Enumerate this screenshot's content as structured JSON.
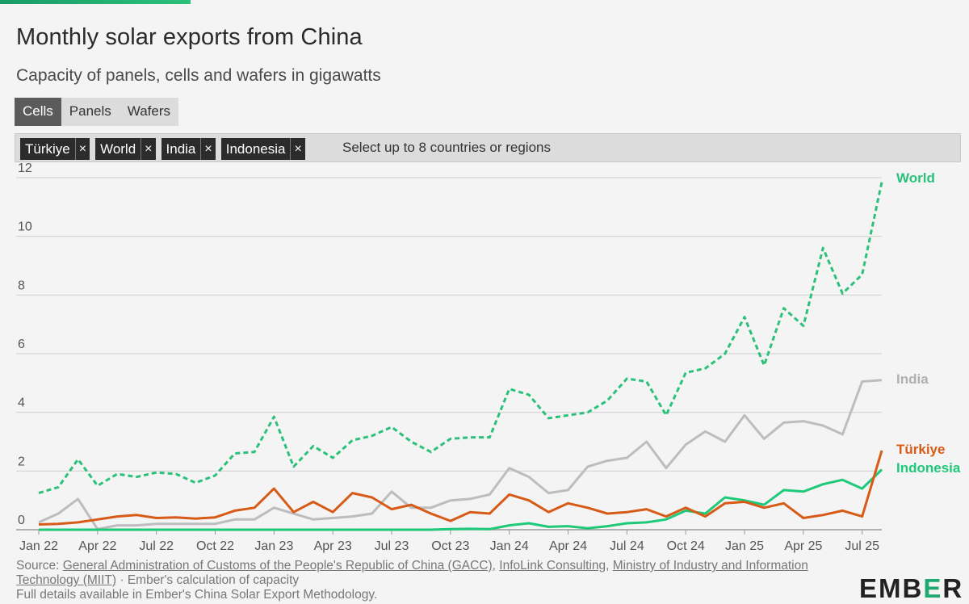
{
  "header": {
    "title": "Monthly solar exports from China",
    "subtitle": "Capacity of panels, cells and wafers in gigawatts"
  },
  "tabs": [
    {
      "label": "Cells",
      "active": true
    },
    {
      "label": "Panels",
      "active": false
    },
    {
      "label": "Wafers",
      "active": false
    }
  ],
  "filter": {
    "chips": [
      "Türkiye",
      "World",
      "India",
      "Indonesia"
    ],
    "remove_symbol": "×",
    "placeholder": "Select up to 8 countries or regions"
  },
  "source": {
    "prefix": "Source: ",
    "link1": "General Administration of Customs of the People's Republic of China (GACC)",
    "sep1": ", ",
    "link2": "InfoLink Consulting",
    "sep2": ", ",
    "link3": "Ministry of Industry and Information Technology (MIIT)",
    "suffix": " · Ember's calculation of capacity",
    "line2": "Full details available in Ember's China Solar Export Methodology."
  },
  "logo": {
    "part1": "EMB",
    "part2": "E",
    "part3": "R",
    "accent_color": "#1fa870"
  },
  "chart_data": {
    "type": "line",
    "ylim": [
      0,
      12
    ],
    "yticks": [
      0,
      2,
      4,
      6,
      8,
      10,
      12
    ],
    "x": [
      "Jan 22",
      "Feb 22",
      "Mar 22",
      "Apr 22",
      "May 22",
      "Jun 22",
      "Jul 22",
      "Aug 22",
      "Sep 22",
      "Oct 22",
      "Nov 22",
      "Dec 22",
      "Jan 23",
      "Feb 23",
      "Mar 23",
      "Apr 23",
      "May 23",
      "Jun 23",
      "Jul 23",
      "Aug 23",
      "Sep 23",
      "Oct 23",
      "Nov 23",
      "Dec 23",
      "Jan 24",
      "Feb 24",
      "Mar 24",
      "Apr 24",
      "May 24",
      "Jun 24",
      "Jul 24",
      "Aug 24",
      "Sep 24",
      "Oct 24",
      "Nov 24",
      "Dec 24",
      "Jan 25",
      "Feb 25",
      "Mar 25",
      "Apr 25",
      "May 25",
      "Jun 25",
      "Jul 25",
      "Aug 25"
    ],
    "xtick_labels": [
      "Jan 22",
      "Apr 22",
      "Jul 22",
      "Oct 22",
      "Jan 23",
      "Apr 23",
      "Jul 23",
      "Oct 23",
      "Jan 24",
      "Apr 24",
      "Jul 24",
      "Oct 24",
      "Jan 25",
      "Apr 25",
      "Jul 25"
    ],
    "grid": true,
    "series": [
      {
        "name": "World",
        "color": "#2bc17a",
        "dashed": true,
        "values": [
          1.25,
          1.45,
          2.4,
          1.5,
          1.9,
          1.8,
          1.95,
          1.9,
          1.6,
          1.85,
          2.6,
          2.65,
          3.85,
          2.15,
          2.85,
          2.45,
          3.05,
          3.2,
          3.5,
          3.0,
          2.65,
          3.1,
          3.15,
          3.15,
          4.8,
          4.6,
          3.8,
          3.9,
          4.0,
          4.4,
          5.15,
          5.05,
          3.9,
          5.35,
          5.5,
          6.0,
          7.25,
          5.6,
          7.55,
          6.95,
          9.6,
          8.05,
          8.7,
          11.85
        ]
      },
      {
        "name": "India",
        "color": "#bdbdbd",
        "dashed": false,
        "values": [
          0.25,
          0.55,
          1.05,
          0.02,
          0.15,
          0.15,
          0.2,
          0.2,
          0.2,
          0.2,
          0.35,
          0.35,
          0.75,
          0.55,
          0.35,
          0.4,
          0.45,
          0.55,
          1.3,
          0.75,
          0.75,
          1.0,
          1.05,
          1.2,
          2.1,
          1.8,
          1.25,
          1.35,
          2.15,
          2.35,
          2.45,
          3.0,
          2.1,
          2.9,
          3.35,
          3.0,
          3.9,
          3.1,
          3.65,
          3.7,
          3.55,
          3.25,
          5.05,
          5.1
        ]
      },
      {
        "name": "Türkiye",
        "color": "#d85a17",
        "dashed": false,
        "values": [
          0.18,
          0.2,
          0.25,
          0.35,
          0.45,
          0.5,
          0.4,
          0.42,
          0.38,
          0.42,
          0.65,
          0.75,
          1.4,
          0.6,
          0.95,
          0.6,
          1.25,
          1.1,
          0.7,
          0.85,
          0.55,
          0.3,
          0.6,
          0.55,
          1.2,
          1.0,
          0.6,
          0.9,
          0.75,
          0.55,
          0.6,
          0.7,
          0.45,
          0.75,
          0.45,
          0.9,
          0.95,
          0.75,
          0.9,
          0.4,
          0.5,
          0.65,
          0.45,
          2.7
        ]
      },
      {
        "name": "Indonesia",
        "color": "#1fc97a",
        "dashed": false,
        "values": [
          0,
          0,
          0,
          0,
          0,
          0,
          0,
          0,
          0,
          0,
          0,
          0,
          0,
          0,
          0,
          0,
          0,
          0,
          0,
          0,
          0,
          0.02,
          0.03,
          0.02,
          0.15,
          0.22,
          0.1,
          0.12,
          0.05,
          0.12,
          0.22,
          0.25,
          0.35,
          0.65,
          0.55,
          1.1,
          1.0,
          0.85,
          1.35,
          1.3,
          1.55,
          1.7,
          1.4,
          2.05
        ]
      }
    ]
  }
}
